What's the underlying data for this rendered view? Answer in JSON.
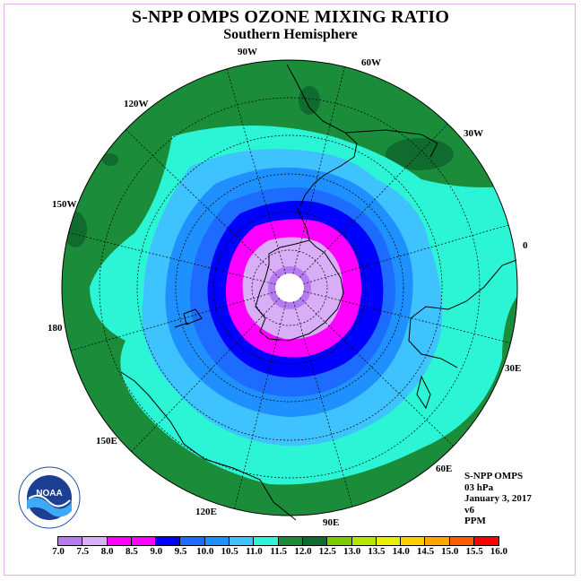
{
  "title": "S-NPP OMPS OZONE MIXING RATIO",
  "subtitle": "Southern Hemisphere",
  "longitude_labels": [
    "90W",
    "60W",
    "30W",
    "0",
    "30E",
    "60E",
    "90E",
    "120E",
    "150E",
    "180",
    "150W",
    "120W"
  ],
  "info": {
    "instrument": "S-NPP OMPS",
    "level": "03 hPa",
    "date": "January 3, 2017",
    "version": "v6",
    "units": "PPM"
  },
  "logo_text": "NOAA",
  "colorbar": {
    "ticks": [
      "7.0",
      "7.5",
      "8.0",
      "8.5",
      "9.0",
      "9.5",
      "10.0",
      "10.5",
      "11.0",
      "11.5",
      "12.0",
      "12.5",
      "13.0",
      "13.5",
      "14.0",
      "14.5",
      "15.0",
      "15.5",
      "16.0"
    ],
    "colors": [
      "#b57bf0",
      "#d8aef6",
      "#ff00ff",
      "#ff00ff",
      "#0000ff",
      "#1e6bff",
      "#1e90ff",
      "#3ec3ff",
      "#2bf5d4",
      "#1a8c3a",
      "#0f6b2e",
      "#7ccd00",
      "#b3e600",
      "#e6f000",
      "#ffd000",
      "#ffa500",
      "#ff5a00",
      "#ff0000",
      "#8b5a3c"
    ]
  }
}
